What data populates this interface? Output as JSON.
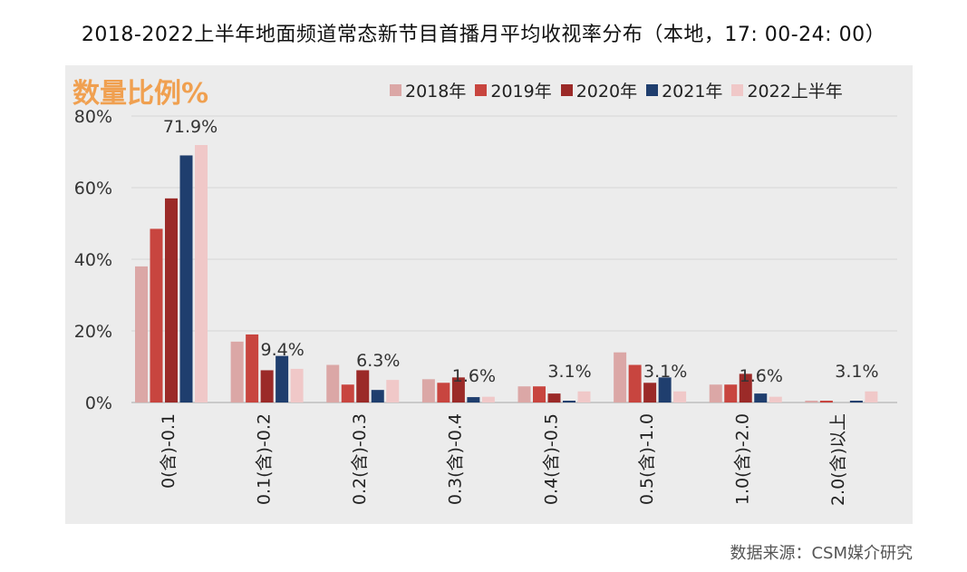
{
  "title": "2018-2022上半年地面频道常态新节目首播月平均收视率分布（本地，17: 00-24: 00）",
  "ylabel": "数量比例%",
  "source": "数据来源：CSM媒介研究",
  "colors": [
    "#dba7a6",
    "#c8453f",
    "#9b2a28",
    "#1f3e6e",
    "#f0c8c8"
  ],
  "chart_data": {
    "type": "bar",
    "title": "2018-2022上半年地面频道常态新节目首播月平均收视率分布（本地，17: 00-24: 00）",
    "ylabel": "数量比例%",
    "ylim": [
      0,
      80
    ],
    "yticks": [
      "0%",
      "20%",
      "40%",
      "60%",
      "80%"
    ],
    "grid": true,
    "legend_position": "top",
    "categories": [
      "0(含)-0.1",
      "0.1(含)-0.2",
      "0.2(含)-0.3",
      "0.3(含)-0.4",
      "0.4(含)-0.5",
      "0.5(含)-1.0",
      "1.0(含)-2.0",
      "2.0(含)以上"
    ],
    "series": [
      {
        "name": "2018年",
        "values": [
          38,
          17,
          10.5,
          6.5,
          4.5,
          14,
          5,
          0.5
        ]
      },
      {
        "name": "2019年",
        "values": [
          48.5,
          19,
          5,
          5.5,
          4.5,
          10.5,
          5,
          0.5
        ]
      },
      {
        "name": "2020年",
        "values": [
          57,
          9,
          9,
          7,
          2.5,
          5.5,
          8,
          0
        ]
      },
      {
        "name": "2021年",
        "values": [
          69,
          13,
          3.5,
          1.5,
          0.5,
          7,
          2.5,
          0.5
        ]
      },
      {
        "name": "2022上半年",
        "values": [
          71.9,
          9.4,
          6.3,
          1.6,
          3.1,
          3.1,
          1.6,
          3.1
        ]
      }
    ],
    "data_labels": [
      "71.9%",
      "9.4%",
      "6.3%",
      "1.6%",
      "3.1%",
      "3.1%",
      "1.6%",
      "3.1%"
    ]
  }
}
